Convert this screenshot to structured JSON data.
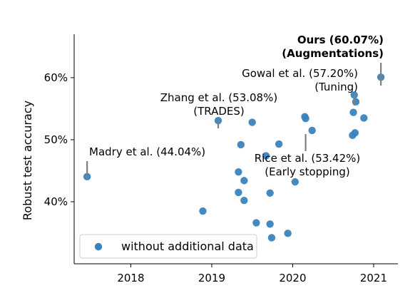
{
  "chart_data": {
    "type": "scatter",
    "title": "",
    "xlabel": "",
    "ylabel": "Robust test accuracy",
    "xlim": [
      2017.3,
      2021.3
    ],
    "ylim": [
      30.0,
      67.0
    ],
    "xticks": [
      2018,
      2019,
      2020,
      2021
    ],
    "xtick_labels": [
      "2018",
      "2019",
      "2020",
      "2021"
    ],
    "yticks": [
      40,
      50,
      60
    ],
    "ytick_labels": [
      "40%",
      "50%",
      "60%"
    ],
    "grid": false,
    "legend_position": "bottom-left",
    "point_color": "#3a83bc",
    "series": [
      {
        "name": "without additional data",
        "points": [
          {
            "x": 2017.46,
            "y": 44.04
          },
          {
            "x": 2018.89,
            "y": 38.5
          },
          {
            "x": 2019.08,
            "y": 53.08
          },
          {
            "x": 2019.33,
            "y": 44.8
          },
          {
            "x": 2019.33,
            "y": 41.5
          },
          {
            "x": 2019.36,
            "y": 49.2
          },
          {
            "x": 2019.4,
            "y": 43.4
          },
          {
            "x": 2019.4,
            "y": 40.2
          },
          {
            "x": 2019.5,
            "y": 52.8
          },
          {
            "x": 2019.55,
            "y": 36.6
          },
          {
            "x": 2019.67,
            "y": 47.4
          },
          {
            "x": 2019.72,
            "y": 41.4
          },
          {
            "x": 2019.72,
            "y": 36.4
          },
          {
            "x": 2019.74,
            "y": 34.2
          },
          {
            "x": 2019.83,
            "y": 49.3
          },
          {
            "x": 2019.94,
            "y": 34.9
          },
          {
            "x": 2020.03,
            "y": 43.2
          },
          {
            "x": 2020.15,
            "y": 53.7
          },
          {
            "x": 2020.16,
            "y": 53.42
          },
          {
            "x": 2020.24,
            "y": 51.5
          },
          {
            "x": 2020.74,
            "y": 50.7
          },
          {
            "x": 2020.75,
            "y": 54.4
          },
          {
            "x": 2020.76,
            "y": 57.2
          },
          {
            "x": 2020.77,
            "y": 51.1
          },
          {
            "x": 2020.78,
            "y": 56.1
          },
          {
            "x": 2020.88,
            "y": 53.5
          },
          {
            "x": 2021.09,
            "y": 60.07
          }
        ]
      }
    ],
    "annotations": [
      {
        "lines": [
          "Madry et al. (44.04%)"
        ],
        "target": {
          "x": 2017.46,
          "y": 44.04
        },
        "bold": false
      },
      {
        "lines": [
          "Zhang et al. (53.08%)",
          "(TRADES)"
        ],
        "target": {
          "x": 2019.08,
          "y": 53.08
        },
        "bold": false
      },
      {
        "lines": [
          "Rice et al. (53.42%)",
          "(Early stopping)"
        ],
        "target": {
          "x": 2020.16,
          "y": 53.42
        },
        "bold": false
      },
      {
        "lines": [
          "Gowal et al. (57.20%)",
          "(Tuning)"
        ],
        "target": {
          "x": 2020.76,
          "y": 57.2
        },
        "bold": false
      },
      {
        "lines": [
          "Ours (60.07%)",
          "(Augmentations)"
        ],
        "target": {
          "x": 2021.09,
          "y": 60.07
        },
        "bold": true
      }
    ]
  }
}
